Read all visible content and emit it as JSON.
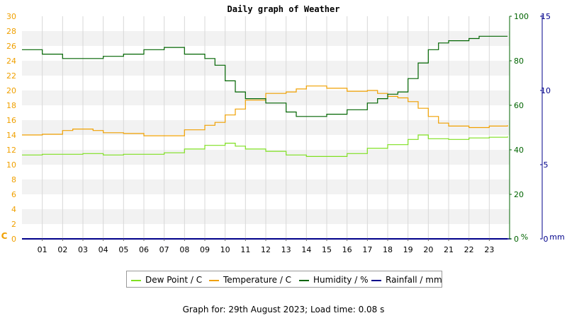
{
  "chart_data": {
    "type": "line",
    "title": "Daily graph of Weather",
    "x_tick_labels": [
      "01",
      "02",
      "03",
      "04",
      "05",
      "06",
      "07",
      "08",
      "09",
      "10",
      "11",
      "12",
      "13",
      "14",
      "15",
      "16",
      "17",
      "18",
      "19",
      "20",
      "21",
      "22",
      "23"
    ],
    "xlim": [
      0,
      24
    ],
    "axes": {
      "temperature": {
        "label": "C",
        "ylim": [
          0,
          30
        ],
        "ticks": [
          0,
          2,
          4,
          6,
          8,
          10,
          12,
          14,
          16,
          18,
          20,
          22,
          24,
          26,
          28,
          30
        ],
        "color": "#f0a000"
      },
      "humidity": {
        "label": "%",
        "ylim": [
          0,
          100
        ],
        "ticks": [
          0,
          20,
          40,
          60,
          80,
          100
        ],
        "color": "#006400"
      },
      "rainfall": {
        "label": "mm",
        "ylim": [
          0,
          15
        ],
        "ticks": [
          0,
          5,
          10,
          15
        ],
        "color": "#00008b"
      }
    },
    "grid": true,
    "legend_position": "bottom",
    "series": [
      {
        "name": "Dew Point / C",
        "axis": "temperature",
        "color": "#7fe020",
        "x": [
          0,
          1,
          2,
          3,
          4,
          5,
          6,
          7,
          8,
          9,
          10,
          10.5,
          11,
          12,
          13,
          14,
          15,
          16,
          17,
          18,
          19,
          19.5,
          20,
          21,
          22,
          23,
          23.9
        ],
        "y": [
          11.3,
          11.4,
          11.4,
          11.5,
          11.3,
          11.4,
          11.4,
          11.6,
          12.1,
          12.6,
          12.9,
          12.5,
          12.1,
          11.8,
          11.3,
          11.1,
          11.1,
          11.5,
          12.2,
          12.7,
          13.4,
          14,
          13.5,
          13.4,
          13.6,
          13.7,
          13.8
        ]
      },
      {
        "name": "Temperature / C",
        "axis": "temperature",
        "color": "#f0a000",
        "x": [
          0,
          1,
          2,
          2.5,
          3,
          3.5,
          4,
          5,
          6,
          7,
          8,
          9,
          9.5,
          10,
          10.5,
          11,
          12,
          13,
          13.5,
          14,
          15,
          16,
          17,
          17.5,
          18,
          18.5,
          19,
          19.5,
          20,
          20.5,
          21,
          22,
          23,
          23.9
        ],
        "y": [
          14,
          14.1,
          14.6,
          14.8,
          14.8,
          14.6,
          14.3,
          14.2,
          13.9,
          13.9,
          14.7,
          15.3,
          15.7,
          16.7,
          17.5,
          18.7,
          19.6,
          19.8,
          20.2,
          20.6,
          20.3,
          19.9,
          20,
          19.6,
          19.2,
          19.0,
          18.5,
          17.6,
          16.5,
          15.6,
          15.2,
          15.0,
          15.2,
          15.3
        ]
      },
      {
        "name": "Humidity / %",
        "axis": "humidity",
        "color": "#006400",
        "x": [
          0,
          0.9,
          1,
          2,
          3,
          4,
          5,
          6,
          7,
          8,
          9,
          9.5,
          10,
          10.5,
          11,
          12,
          13,
          13.5,
          14,
          15,
          16,
          17,
          17.5,
          18,
          18.5,
          19,
          19.5,
          20,
          20.5,
          21,
          22,
          22.5,
          23,
          23.9
        ],
        "y": [
          85,
          85,
          83,
          81,
          81,
          82,
          83,
          85,
          86,
          83,
          81,
          78,
          71,
          66,
          63,
          61,
          57,
          55,
          55,
          56,
          58,
          61,
          63,
          65,
          66,
          72,
          79,
          85,
          88,
          89,
          90,
          91,
          91,
          91
        ]
      },
      {
        "name": "Rainfall / mm",
        "axis": "rainfall",
        "color": "#00008b",
        "x": [
          0,
          23.9
        ],
        "y": [
          0,
          0
        ]
      }
    ]
  },
  "footer": {
    "text": "Graph for: 29th August 2023; Load time: 0.08 s"
  }
}
